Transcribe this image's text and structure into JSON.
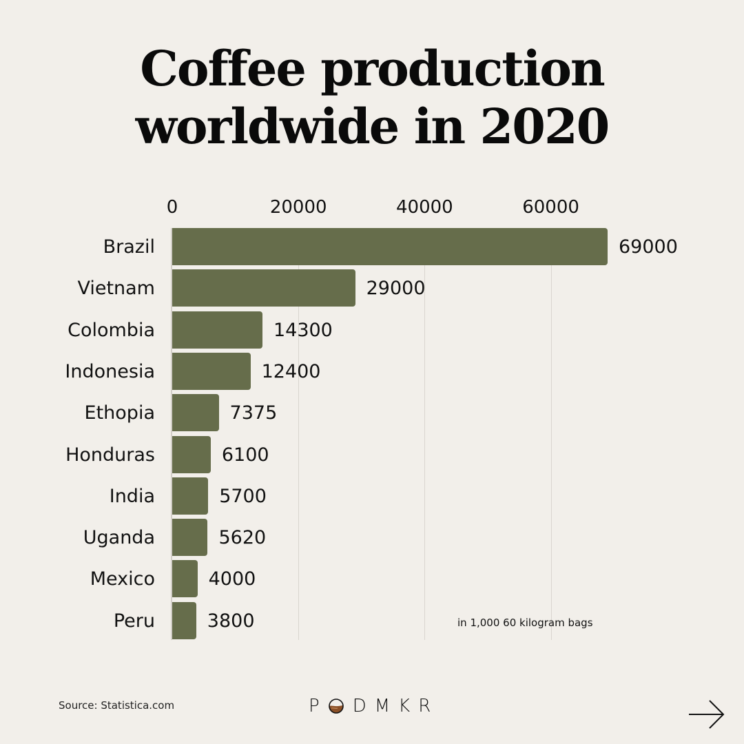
{
  "title": {
    "line1": "Coffee production",
    "line2": "worldwide in 2020"
  },
  "chart_data": {
    "type": "bar",
    "orientation": "horizontal",
    "title": "Coffee production worldwide in 2020",
    "xlabel": "",
    "ylabel": "",
    "units_note": "in 1,000 60 kilogram bags",
    "categories": [
      "Brazil",
      "Vietnam",
      "Colombia",
      "Indonesia",
      "Ethopia",
      "Honduras",
      "India",
      "Uganda",
      "Mexico",
      "Peru"
    ],
    "values": [
      69000,
      29000,
      14300,
      12400,
      7375,
      6100,
      5700,
      5620,
      4000,
      3800
    ],
    "value_labels": [
      "69000",
      "29000",
      "14300",
      "12400",
      "7375",
      "6100",
      "5700",
      "5620",
      "4000",
      "3800"
    ],
    "x_ticks": [
      "0",
      "20000",
      "40000",
      "60000"
    ],
    "xlim": [
      0,
      69000
    ],
    "grid": true,
    "axis_position": "top",
    "bar_color": "#666d4b",
    "legend": null
  },
  "footer": {
    "source": "Source: Statistica.com",
    "brand_prefix": "P",
    "brand_suffix": "DMKR",
    "brand_logo_icon": "coffee-cup-o-icon",
    "next_icon": "arrow-right-icon"
  },
  "colors": {
    "background": "#f2efea",
    "bar": "#666d4b",
    "gridline": "#d9d5cf",
    "text": "#111111",
    "logo_coffee": "#8a4f26"
  }
}
